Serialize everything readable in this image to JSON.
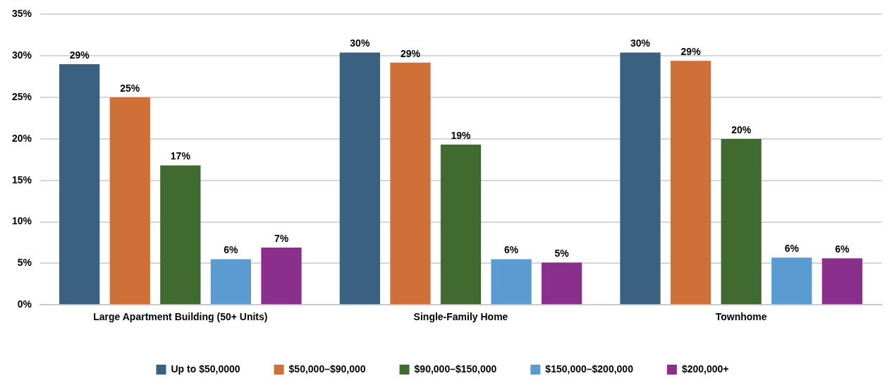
{
  "chart_data": {
    "type": "bar",
    "categories": [
      "Large Apartment Building (50+ Units)",
      "Single-Family Home",
      "Townhome"
    ],
    "series": [
      {
        "name": "Up to $50,0000",
        "color": "#3a6180",
        "values": [
          29.0,
          30.4,
          30.4
        ],
        "value_labels": [
          "29%",
          "30%",
          "30%"
        ]
      },
      {
        "name": "$50,000–$90,000",
        "color": "#cf7038",
        "values": [
          25.0,
          29.2,
          29.4
        ],
        "value_labels": [
          "25%",
          "29%",
          "29%"
        ]
      },
      {
        "name": "$90,000–$150,000",
        "color": "#406a30",
        "values": [
          16.8,
          19.3,
          20.0
        ],
        "value_labels": [
          "17%",
          "19%",
          "20%"
        ]
      },
      {
        "name": "$150,000–$200,000",
        "color": "#5b9bd1",
        "values": [
          5.5,
          5.5,
          5.7
        ],
        "value_labels": [
          "6%",
          "6%",
          "6%"
        ]
      },
      {
        "name": "$200,000+",
        "color": "#8a2f8c",
        "values": [
          6.9,
          5.1,
          5.6
        ],
        "value_labels": [
          "7%",
          "5%",
          "6%"
        ]
      }
    ],
    "ylim": [
      0,
      35
    ],
    "yticks": [
      {
        "value": 0,
        "label": "0%"
      },
      {
        "value": 5,
        "label": "5%"
      },
      {
        "value": 10,
        "label": "10%"
      },
      {
        "value": 15,
        "label": "15%"
      },
      {
        "value": 20,
        "label": "20%"
      },
      {
        "value": 25,
        "label": "25%"
      },
      {
        "value": 30,
        "label": "30%"
      },
      {
        "value": 35,
        "label": "35%"
      }
    ],
    "grid": "y",
    "legend": "bottom"
  }
}
